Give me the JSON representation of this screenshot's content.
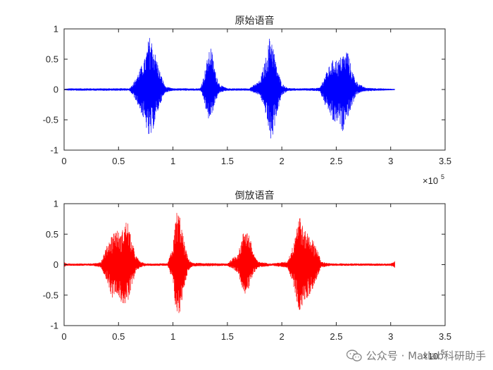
{
  "colors": {
    "axis": "#262626",
    "top_series": "#0000ff",
    "bottom_series": "#ff0000"
  },
  "x_multiplier": {
    "base": "×10",
    "exponent": "5"
  },
  "chart_data": [
    {
      "type": "line",
      "title": "原始语音",
      "xlabel": "",
      "ylabel": "",
      "xlim": [
        0,
        350000
      ],
      "ylim": [
        -1,
        1
      ],
      "xticks": [
        0,
        0.5,
        1,
        1.5,
        2,
        2.5,
        3,
        3.5
      ],
      "yticks": [
        -1,
        -0.5,
        0,
        0.5,
        1
      ],
      "x_scale": 100000,
      "grid": false,
      "series": [
        {
          "color": "#0000ff",
          "x_end": 304000,
          "envelope": {
            "x": [
              0,
              5000,
              60000,
              65000,
              70000,
              75000,
              78000,
              80000,
              84000,
              88000,
              93000,
              100000,
              125000,
              128000,
              132000,
              135000,
              139000,
              143000,
              150000,
              170000,
              180000,
              186000,
              189000,
              191000,
              195000,
              200000,
              205000,
              210000,
              225000,
              235000,
              240000,
              244000,
              248000,
              252000,
              256000,
              258000,
              260000,
              264000,
              268000,
              272000,
              277000,
              290000,
              304000
            ],
            "max": [
              0.01,
              0.02,
              0.02,
              0.15,
              0.35,
              0.55,
              0.88,
              0.85,
              0.58,
              0.3,
              0.05,
              0.02,
              0.02,
              0.2,
              0.55,
              0.72,
              0.3,
              0.08,
              0.02,
              0.02,
              0.15,
              0.58,
              0.9,
              0.85,
              0.4,
              0.1,
              0.03,
              0.02,
              0.02,
              0.03,
              0.25,
              0.4,
              0.52,
              0.48,
              0.6,
              0.55,
              0.7,
              0.35,
              0.15,
              0.08,
              0.03,
              0.02,
              0.01
            ],
            "min": [
              -0.01,
              -0.02,
              -0.02,
              -0.15,
              -0.35,
              -0.6,
              -0.82,
              -0.78,
              -0.5,
              -0.25,
              -0.05,
              -0.02,
              -0.02,
              -0.15,
              -0.5,
              -0.48,
              -0.2,
              -0.05,
              -0.02,
              -0.02,
              -0.1,
              -0.45,
              -0.82,
              -0.85,
              -0.45,
              -0.1,
              -0.03,
              -0.02,
              -0.02,
              -0.03,
              -0.28,
              -0.4,
              -0.58,
              -0.52,
              -0.72,
              -0.5,
              -0.48,
              -0.3,
              -0.1,
              -0.05,
              -0.03,
              -0.02,
              -0.01
            ]
          }
        }
      ]
    },
    {
      "type": "line",
      "title": "倒放语音",
      "xlabel": "",
      "ylabel": "",
      "xlim": [
        0,
        350000
      ],
      "ylim": [
        -1,
        1
      ],
      "xticks": [
        0,
        0.5,
        1,
        1.5,
        2,
        2.5,
        3,
        3.5
      ],
      "yticks": [
        -1,
        -0.5,
        0,
        0.5,
        1
      ],
      "x_scale": 100000,
      "grid": false,
      "series": [
        {
          "color": "#ff0000",
          "x_end": 304000,
          "envelope": {
            "x": [
              0,
              2000,
              15000,
              27000,
              34000,
              40000,
              44000,
              48000,
              52000,
              55000,
              58000,
              62000,
              66000,
              70000,
              75000,
              95000,
              100000,
              103000,
              106000,
              110000,
              114000,
              118000,
              150000,
              160000,
              163000,
              166000,
              170000,
              174000,
              178000,
              190000,
              205000,
              210000,
              213000,
              216000,
              218000,
              220000,
              223000,
              227000,
              232000,
              236000,
              245000,
              300000,
              304000
            ],
            "max": [
              0.05,
              0.02,
              0.02,
              0.02,
              0.05,
              0.35,
              0.5,
              0.6,
              0.48,
              0.65,
              0.75,
              0.4,
              0.15,
              0.05,
              0.02,
              0.02,
              0.3,
              0.88,
              0.85,
              0.4,
              0.1,
              0.03,
              0.02,
              0.2,
              0.4,
              0.65,
              0.5,
              0.2,
              0.05,
              0.02,
              0.05,
              0.3,
              0.6,
              0.88,
              0.75,
              0.55,
              0.55,
              0.45,
              0.3,
              0.05,
              0.02,
              0.02,
              0.06
            ],
            "min": [
              -0.05,
              -0.02,
              -0.02,
              -0.02,
              -0.05,
              -0.3,
              -0.55,
              -0.45,
              -0.62,
              -0.65,
              -0.68,
              -0.4,
              -0.1,
              -0.05,
              -0.02,
              -0.02,
              -0.3,
              -0.82,
              -0.85,
              -0.4,
              -0.1,
              -0.03,
              -0.02,
              -0.15,
              -0.35,
              -0.48,
              -0.4,
              -0.15,
              -0.05,
              -0.02,
              -0.05,
              -0.3,
              -0.55,
              -0.78,
              -0.78,
              -0.6,
              -0.58,
              -0.45,
              -0.25,
              -0.05,
              -0.02,
              -0.02,
              -0.06
            ]
          }
        }
      ]
    }
  ],
  "watermark": {
    "text": "公众号 · Matlab科研助手",
    "icon": "wechat-icon"
  }
}
